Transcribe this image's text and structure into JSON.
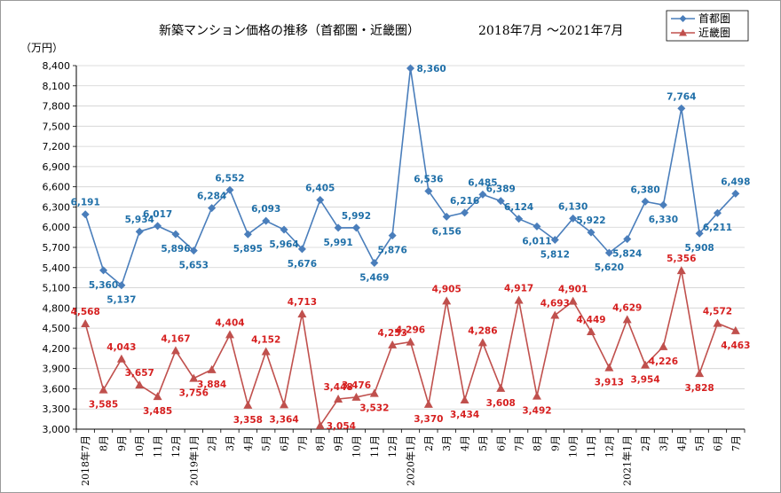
{
  "chart_data": {
    "type": "line",
    "title": "新築マンション価格の推移（首都圏・近畿圏）",
    "subtitle": "2018年7月 ～2021年7月",
    "ylabel": "（万円）",
    "xlabel": "",
    "ylim": [
      3000,
      8400
    ],
    "ytick_step": 300,
    "grid": true,
    "legend_position": "top-right",
    "categories": [
      "2018年7月",
      "8月",
      "9月",
      "10月",
      "11月",
      "12月",
      "2019年1月",
      "2月",
      "3月",
      "4月",
      "5月",
      "6月",
      "7月",
      "8月",
      "9月",
      "10月",
      "11月",
      "12月",
      "2020年1月",
      "2月",
      "3月",
      "4月",
      "5月",
      "6月",
      "7月",
      "8月",
      "9月",
      "10月",
      "11月",
      "12月",
      "2021年1月",
      "2月",
      "3月",
      "4月",
      "5月",
      "6月",
      "7月"
    ],
    "series": [
      {
        "name": "首都圏",
        "color": "#4a7ebb",
        "label_color": "#1f6fa8",
        "marker": "diamond",
        "values": [
          6191,
          5360,
          5137,
          5934,
          6017,
          5896,
          5653,
          6284,
          6552,
          5895,
          6093,
          5964,
          5676,
          6405,
          5991,
          5992,
          5469,
          5876,
          8360,
          6536,
          6156,
          6216,
          6485,
          6389,
          6124,
          6011,
          5812,
          6130,
          5922,
          5620,
          5824,
          6380,
          6330,
          7764,
          5908,
          6211,
          6498
        ],
        "label_pos": [
          "a",
          "b",
          "b",
          "a",
          "a",
          "b",
          "b",
          "a",
          "a",
          "b",
          "a",
          "b",
          "b",
          "a",
          "b",
          "a",
          "b",
          "b",
          "r",
          "a",
          "b",
          "a",
          "a",
          "a",
          "a",
          "b",
          "b",
          "a",
          "a",
          "b",
          "b",
          "a",
          "b",
          "a",
          "b",
          "b",
          "a"
        ]
      },
      {
        "name": "近畿圏",
        "color": "#c0504d",
        "label_color": "#d62020",
        "marker": "triangle",
        "values": [
          4568,
          3585,
          4043,
          3657,
          3485,
          4167,
          3756,
          3884,
          4404,
          3358,
          4152,
          3364,
          4713,
          3054,
          3448,
          3476,
          3532,
          4253,
          4296,
          3370,
          4905,
          3434,
          4286,
          3608,
          4917,
          3492,
          4693,
          4901,
          4449,
          3913,
          4629,
          3954,
          4226,
          5356,
          3828,
          4572,
          4463
        ],
        "label_pos": [
          "a",
          "b",
          "a",
          "a",
          "b",
          "a",
          "b",
          "b",
          "a",
          "b",
          "a",
          "b",
          "a",
          "r",
          "a",
          "a",
          "b",
          "a",
          "a",
          "b",
          "a",
          "b",
          "a",
          "b",
          "a",
          "b",
          "a",
          "a",
          "a",
          "b",
          "a",
          "b",
          "b",
          "a",
          "b",
          "a",
          "b"
        ]
      }
    ]
  }
}
